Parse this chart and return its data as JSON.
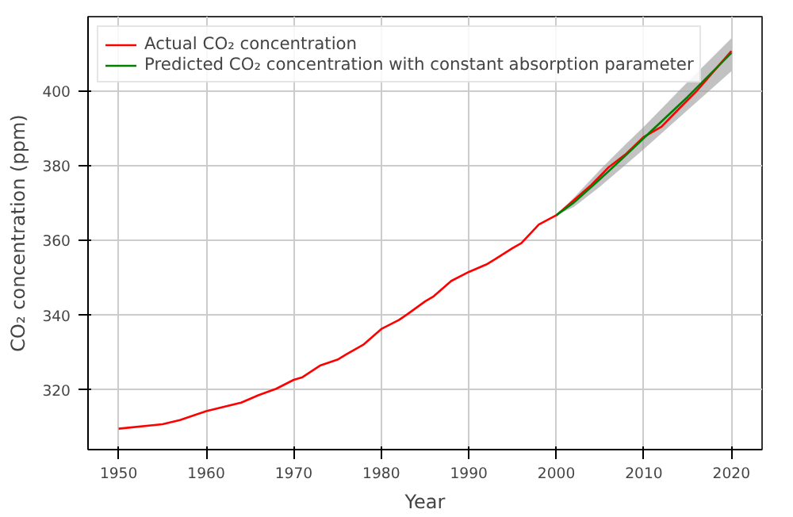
{
  "chart_data": {
    "type": "line",
    "xlabel": "Year",
    "ylabel": "CO₂ concentration (ppm)",
    "xlim": [
      1946.5,
      2023.5
    ],
    "xticks": [
      1950,
      1960,
      1970,
      1980,
      1990,
      2000,
      2010,
      2020
    ],
    "ylim": [
      304,
      420
    ],
    "yticks": [
      320,
      340,
      360,
      380,
      400
    ],
    "grid": true,
    "legend": "top left",
    "marker": "none",
    "line_style": "solid",
    "series": [
      {
        "name": "Actual CO₂ concentration",
        "color": "#ff0000",
        "x": [
          1950,
          1955,
          1957,
          1960,
          1964,
          1966,
          1968,
          1970,
          1971,
          1973,
          1975,
          1976,
          1978,
          1980,
          1982,
          1983,
          1985,
          1986,
          1988,
          1990,
          1992,
          1993,
          1995,
          1996,
          1997,
          1998,
          2000,
          2002,
          2004,
          2006,
          2008,
          2010,
          2012,
          2014,
          2016,
          2018,
          2020
        ],
        "values": [
          309.6,
          310.8,
          311.9,
          314.3,
          316.6,
          318.6,
          320.3,
          322.7,
          323.4,
          326.5,
          328.1,
          329.5,
          332.2,
          336.3,
          338.7,
          340.3,
          343.7,
          345.1,
          349.2,
          351.6,
          353.6,
          355.0,
          358.0,
          359.3,
          361.8,
          364.3,
          366.8,
          370.8,
          374.9,
          379.7,
          383.3,
          387.8,
          390.5,
          395.3,
          400.0,
          405.4,
          410.8
        ]
      },
      {
        "name": "Predicted CO₂ concentration with constant absorption parameter",
        "color": "#008000",
        "x": [
          2000,
          2002,
          2005,
          2008,
          2010,
          2015,
          2020
        ],
        "values": [
          366.8,
          370.2,
          376.5,
          383.0,
          387.5,
          398.5,
          410.3
        ],
        "lower": [
          366.8,
          369.0,
          374.5,
          380.5,
          384.5,
          395.0,
          405.4
        ],
        "upper": [
          366.8,
          371.5,
          379.0,
          386.0,
          390.5,
          402.5,
          414.2
        ]
      }
    ]
  }
}
